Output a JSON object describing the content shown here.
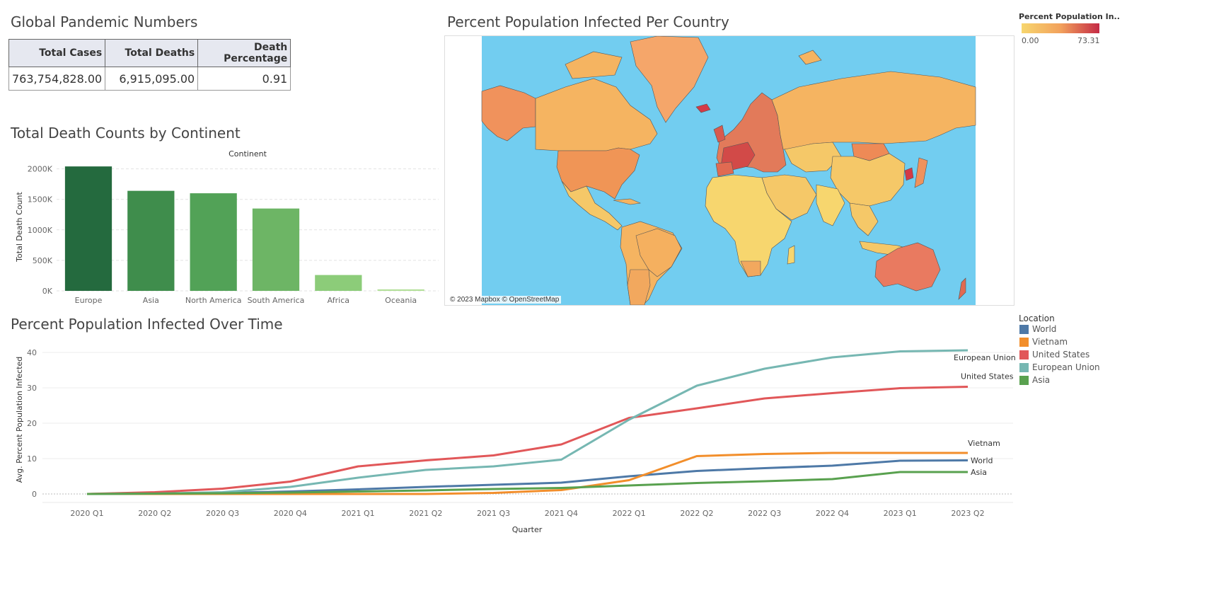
{
  "kpi": {
    "title": "Global Pandemic Numbers",
    "headers": [
      "Total Cases",
      "Total Deaths",
      "Death Percentage"
    ],
    "values": [
      "763,754,828.00",
      "6,915,095.00",
      "0.91"
    ]
  },
  "bar": {
    "title": "Total Death Counts by Continent"
  },
  "map": {
    "title": "Percent Population Infected Per Country",
    "attribution": "© 2023 Mapbox © OpenStreetMap",
    "ocean_color": "#72cdf0",
    "legend": {
      "title": "Percent Population In..",
      "min": "0.00",
      "max": "73.31",
      "colors": [
        "#f7d66e",
        "#f2a15c",
        "#c42a45"
      ]
    }
  },
  "line": {
    "title": "Percent Population Infected Over Time",
    "legend_title": "Location"
  },
  "chart_data": [
    {
      "type": "bar",
      "title": "Total Death Counts by Continent",
      "header": "Continent",
      "xlabel": "",
      "ylabel": "Total Death Count",
      "categories": [
        "Europe",
        "Asia",
        "North America",
        "South America",
        "Africa",
        "Oceania"
      ],
      "values": [
        2040000,
        1640000,
        1600000,
        1350000,
        260000,
        25000
      ],
      "colors": [
        "#246a3e",
        "#3f8d4c",
        "#52a257",
        "#6db565",
        "#8ccc79",
        "#b4e09a"
      ],
      "yticks": [
        "0K",
        "500K",
        "1000K",
        "1500K",
        "2000K"
      ],
      "ylim": [
        0,
        2100000
      ],
      "grid": true
    },
    {
      "type": "line",
      "title": "Percent Population Infected Over Time",
      "xlabel": "Quarter",
      "ylabel": "Avg. Percent Population Infected",
      "x": [
        "2020 Q1",
        "2020 Q2",
        "2020 Q3",
        "2020 Q4",
        "2021 Q1",
        "2021 Q2",
        "2021 Q3",
        "2021 Q4",
        "2022 Q1",
        "2022 Q2",
        "2022 Q3",
        "2022 Q4",
        "2023 Q1",
        "2023 Q2"
      ],
      "ylim": [
        0,
        42
      ],
      "yticks": [
        0,
        10,
        20,
        30,
        40
      ],
      "legend_position": "right",
      "series": [
        {
          "name": "World",
          "color": "#4e79a7",
          "values": [
            0,
            0.1,
            0.3,
            0.7,
            1.3,
            2.0,
            2.6,
            3.2,
            5.0,
            6.5,
            7.3,
            8.0,
            9.4,
            9.5
          ]
        },
        {
          "name": "Vietnam",
          "color": "#f28e2b",
          "values": [
            0,
            0,
            0,
            0,
            0,
            0,
            0.3,
            1.1,
            3.9,
            10.7,
            11.3,
            11.6,
            11.6,
            11.6
          ]
        },
        {
          "name": "United States",
          "color": "#e15759",
          "values": [
            0,
            0.5,
            1.5,
            3.5,
            7.8,
            9.5,
            10.9,
            14.0,
            21.5,
            24.2,
            27.0,
            28.5,
            29.9,
            30.3
          ]
        },
        {
          "name": "European Union",
          "color": "#76b7b2",
          "values": [
            0,
            0.1,
            0.5,
            2.0,
            4.6,
            6.8,
            7.8,
            9.7,
            21.0,
            30.6,
            35.4,
            38.6,
            40.3,
            40.6
          ]
        },
        {
          "name": "Asia",
          "color": "#59a14f",
          "values": [
            0,
            0.1,
            0.2,
            0.4,
            0.7,
            1.0,
            1.4,
            1.7,
            2.4,
            3.1,
            3.6,
            4.2,
            6.2,
            6.2
          ]
        }
      ]
    }
  ]
}
